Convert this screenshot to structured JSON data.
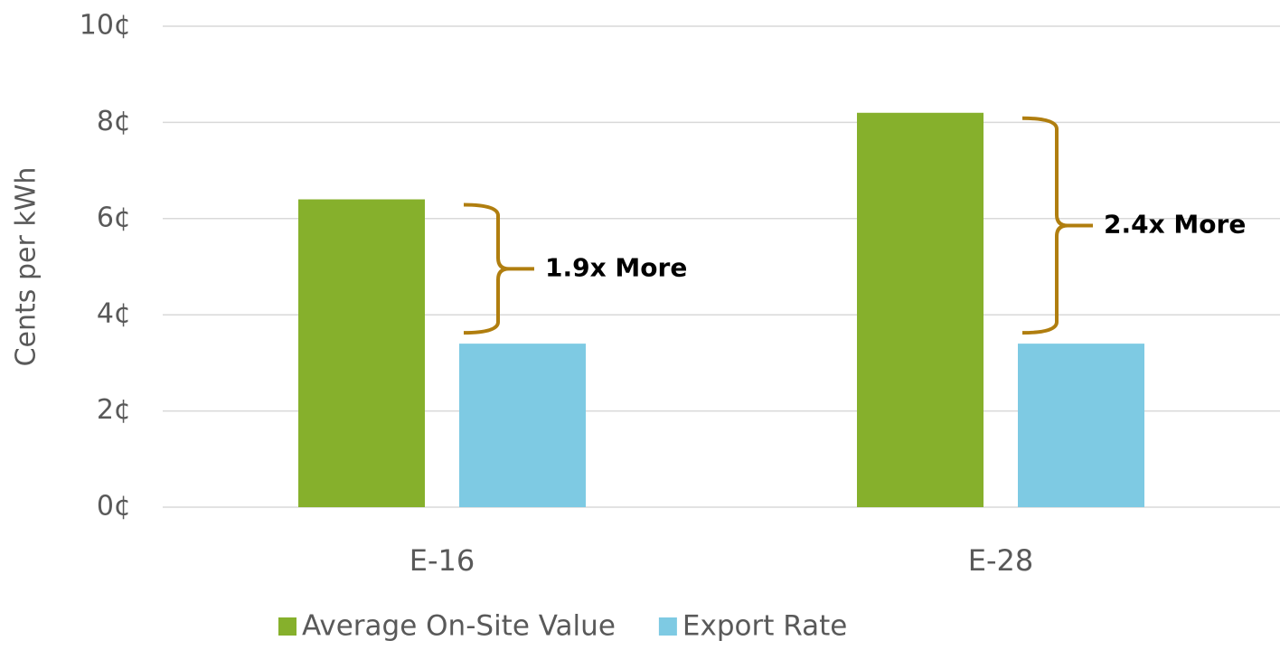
{
  "chart_data": {
    "type": "bar",
    "y_label": "Cents per kWh",
    "categories": [
      "E-16",
      "E-28"
    ],
    "series": [
      {
        "name": "Average On-Site Value",
        "color": "#86b02c",
        "values": [
          6.4,
          8.2
        ]
      },
      {
        "name": "Export Rate",
        "color": "#7ecae3",
        "values": [
          3.4,
          3.4
        ]
      }
    ],
    "annotations": [
      "1.9x More",
      "2.4x More"
    ],
    "ylim": [
      0,
      10
    ],
    "yticks": [
      {
        "value": 0,
        "label": "0¢"
      },
      {
        "value": 2,
        "label": "2¢"
      },
      {
        "value": 4,
        "label": "4¢"
      },
      {
        "value": 6,
        "label": "6¢"
      },
      {
        "value": 8,
        "label": "8¢"
      },
      {
        "value": 10,
        "label": "10¢"
      }
    ],
    "grid": true,
    "legend": "bottom"
  }
}
